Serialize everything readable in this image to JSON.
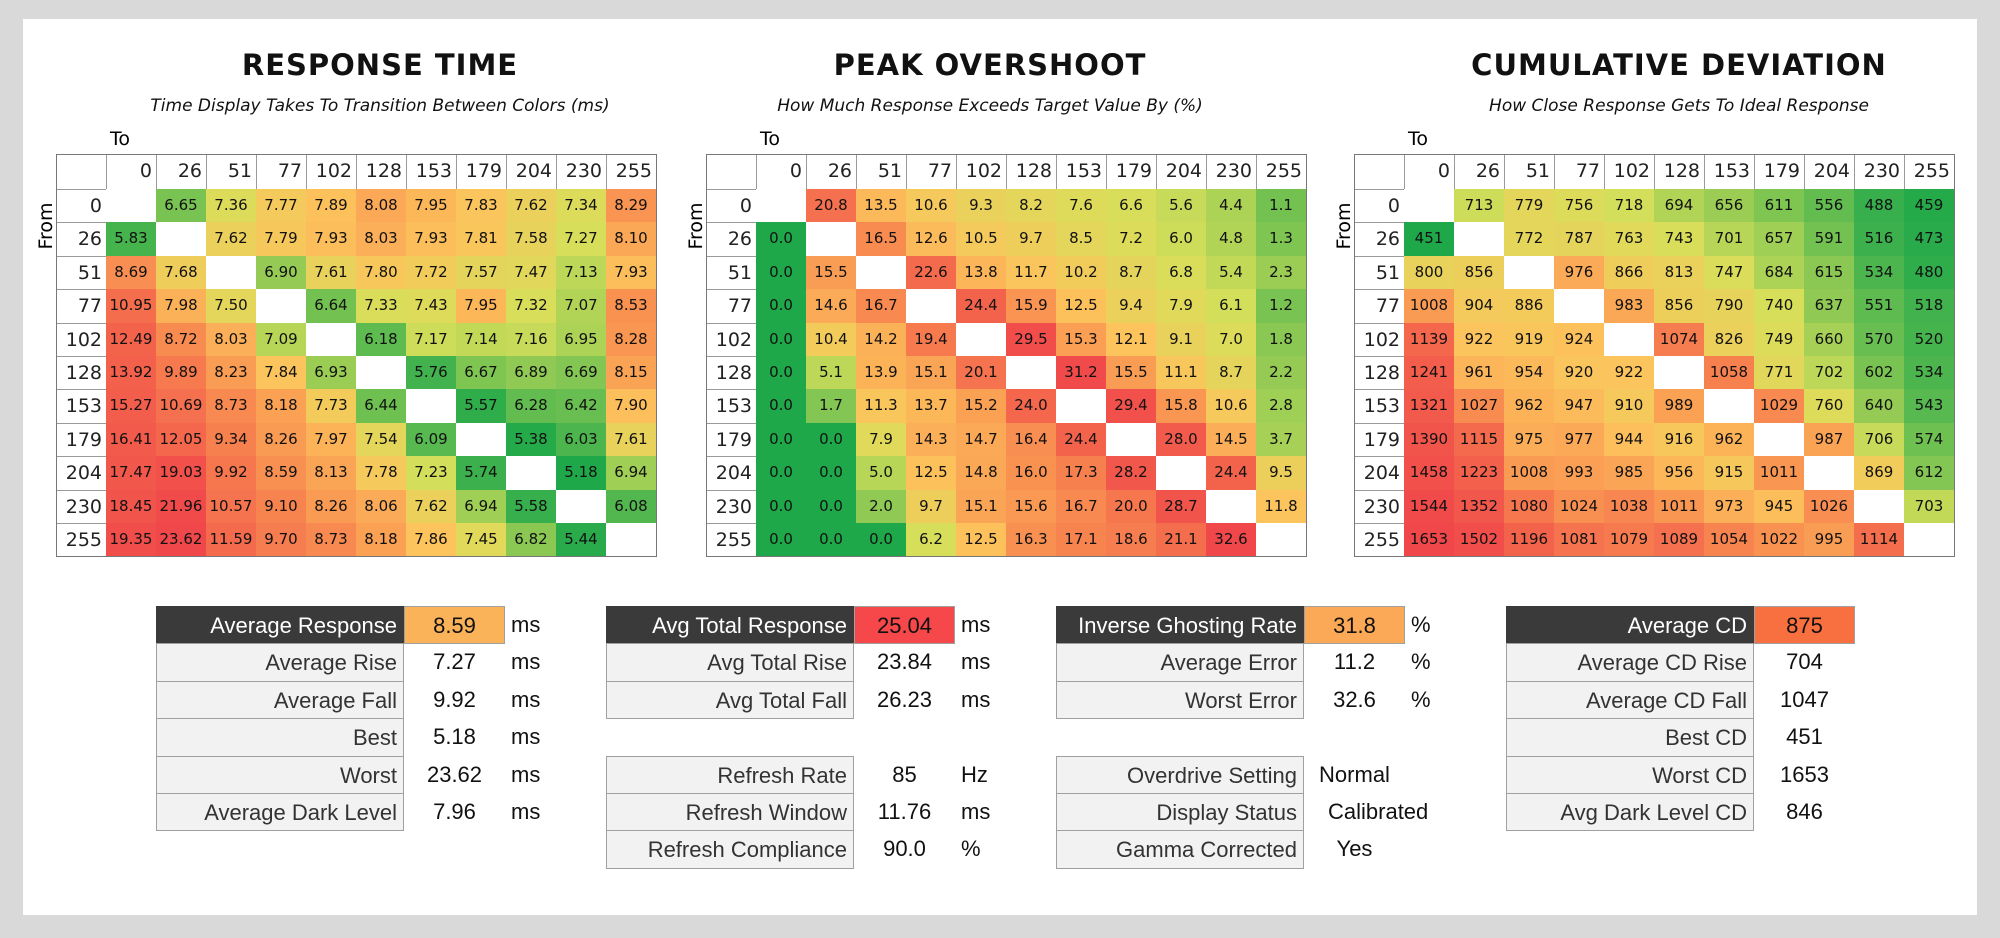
{
  "heatmaps": [
    {
      "title": "RESPONSE TIME",
      "subtitle": "Time Display Takes To Transition Between Colors (ms)",
      "to_label": "To",
      "from_label": "From",
      "columns": [
        "0",
        "26",
        "51",
        "77",
        "102",
        "128",
        "153",
        "179",
        "204",
        "230",
        "255"
      ],
      "rows": [
        {
          "label": "0",
          "cells": [
            null,
            "6.65",
            "7.36",
            "7.77",
            "7.89",
            "8.08",
            "7.95",
            "7.83",
            "7.62",
            "7.34",
            "8.29"
          ]
        },
        {
          "label": "26",
          "cells": [
            "5.83",
            null,
            "7.62",
            "7.79",
            "7.93",
            "8.03",
            "7.93",
            "7.81",
            "7.58",
            "7.27",
            "8.10"
          ]
        },
        {
          "label": "51",
          "cells": [
            "8.69",
            "7.68",
            null,
            "6.90",
            "7.61",
            "7.80",
            "7.72",
            "7.57",
            "7.47",
            "7.13",
            "7.93"
          ]
        },
        {
          "label": "77",
          "cells": [
            "10.95",
            "7.98",
            "7.50",
            null,
            "6.64",
            "7.33",
            "7.43",
            "7.95",
            "7.32",
            "7.07",
            "8.53"
          ]
        },
        {
          "label": "102",
          "cells": [
            "12.49",
            "8.72",
            "8.03",
            "7.09",
            null,
            "6.18",
            "7.17",
            "7.14",
            "7.16",
            "6.95",
            "8.28"
          ]
        },
        {
          "label": "128",
          "cells": [
            "13.92",
            "9.89",
            "8.23",
            "7.84",
            "6.93",
            null,
            "5.76",
            "6.67",
            "6.89",
            "6.69",
            "8.15"
          ]
        },
        {
          "label": "153",
          "cells": [
            "15.27",
            "10.69",
            "8.73",
            "8.18",
            "7.73",
            "6.44",
            null,
            "5.57",
            "6.28",
            "6.42",
            "7.90"
          ]
        },
        {
          "label": "179",
          "cells": [
            "16.41",
            "12.05",
            "9.34",
            "8.26",
            "7.97",
            "7.54",
            "6.09",
            null,
            "5.38",
            "6.03",
            "7.61"
          ]
        },
        {
          "label": "204",
          "cells": [
            "17.47",
            "19.03",
            "9.92",
            "8.59",
            "8.13",
            "7.78",
            "7.23",
            "5.74",
            null,
            "5.18",
            "6.94"
          ]
        },
        {
          "label": "230",
          "cells": [
            "18.45",
            "21.96",
            "10.57",
            "9.10",
            "8.26",
            "8.06",
            "7.62",
            "6.94",
            "5.58",
            null,
            "6.08"
          ]
        },
        {
          "label": "255",
          "cells": [
            "19.35",
            "23.62",
            "11.59",
            "9.70",
            "8.73",
            "8.18",
            "7.86",
            "7.45",
            "6.82",
            "5.44",
            null
          ]
        }
      ]
    },
    {
      "title": "PEAK OVERSHOOT",
      "subtitle": "How Much Response Exceeds Target Value By (%)",
      "to_label": "To",
      "from_label": "From",
      "columns": [
        "0",
        "26",
        "51",
        "77",
        "102",
        "128",
        "153",
        "179",
        "204",
        "230",
        "255"
      ],
      "rows": [
        {
          "label": "0",
          "cells": [
            null,
            "20.8",
            "13.5",
            "10.6",
            "9.3",
            "8.2",
            "7.6",
            "6.6",
            "5.6",
            "4.4",
            "1.1"
          ]
        },
        {
          "label": "26",
          "cells": [
            "0.0",
            null,
            "16.5",
            "12.6",
            "10.5",
            "9.7",
            "8.5",
            "7.2",
            "6.0",
            "4.8",
            "1.3"
          ]
        },
        {
          "label": "51",
          "cells": [
            "0.0",
            "15.5",
            null,
            "22.6",
            "13.8",
            "11.7",
            "10.2",
            "8.7",
            "6.8",
            "5.4",
            "2.3"
          ]
        },
        {
          "label": "77",
          "cells": [
            "0.0",
            "14.6",
            "16.7",
            null,
            "24.4",
            "15.9",
            "12.5",
            "9.4",
            "7.9",
            "6.1",
            "1.2"
          ]
        },
        {
          "label": "102",
          "cells": [
            "0.0",
            "10.4",
            "14.2",
            "19.4",
            null,
            "29.5",
            "15.3",
            "12.1",
            "9.1",
            "7.0",
            "1.8"
          ]
        },
        {
          "label": "128",
          "cells": [
            "0.0",
            "5.1",
            "13.9",
            "15.1",
            "20.1",
            null,
            "31.2",
            "15.5",
            "11.1",
            "8.7",
            "2.2"
          ]
        },
        {
          "label": "153",
          "cells": [
            "0.0",
            "1.7",
            "11.3",
            "13.7",
            "15.2",
            "24.0",
            null,
            "29.4",
            "15.8",
            "10.6",
            "2.8"
          ]
        },
        {
          "label": "179",
          "cells": [
            "0.0",
            "0.0",
            "7.9",
            "14.3",
            "14.7",
            "16.4",
            "24.4",
            null,
            "28.0",
            "14.5",
            "3.7"
          ]
        },
        {
          "label": "204",
          "cells": [
            "0.0",
            "0.0",
            "5.0",
            "12.5",
            "14.8",
            "16.0",
            "17.3",
            "28.2",
            null,
            "24.4",
            "9.5"
          ]
        },
        {
          "label": "230",
          "cells": [
            "0.0",
            "0.0",
            "2.0",
            "9.7",
            "15.1",
            "15.6",
            "16.7",
            "20.0",
            "28.7",
            null,
            "11.8"
          ]
        },
        {
          "label": "255",
          "cells": [
            "0.0",
            "0.0",
            "0.0",
            "6.2",
            "12.5",
            "16.3",
            "17.1",
            "18.6",
            "21.1",
            "32.6",
            null
          ]
        }
      ]
    },
    {
      "title": "CUMULATIVE DEVIATION",
      "subtitle": "How Close Response Gets To Ideal Response",
      "to_label": "To",
      "from_label": "From",
      "columns": [
        "0",
        "26",
        "51",
        "77",
        "102",
        "128",
        "153",
        "179",
        "204",
        "230",
        "255"
      ],
      "rows": [
        {
          "label": "0",
          "cells": [
            null,
            "713",
            "779",
            "756",
            "718",
            "694",
            "656",
            "611",
            "556",
            "488",
            "459"
          ]
        },
        {
          "label": "26",
          "cells": [
            "451",
            null,
            "772",
            "787",
            "763",
            "743",
            "701",
            "657",
            "591",
            "516",
            "473"
          ]
        },
        {
          "label": "51",
          "cells": [
            "800",
            "856",
            null,
            "976",
            "866",
            "813",
            "747",
            "684",
            "615",
            "534",
            "480"
          ]
        },
        {
          "label": "77",
          "cells": [
            "1008",
            "904",
            "886",
            null,
            "983",
            "856",
            "790",
            "740",
            "637",
            "551",
            "518"
          ]
        },
        {
          "label": "102",
          "cells": [
            "1139",
            "922",
            "919",
            "924",
            null,
            "1074",
            "826",
            "749",
            "660",
            "570",
            "520"
          ]
        },
        {
          "label": "128",
          "cells": [
            "1241",
            "961",
            "954",
            "920",
            "922",
            null,
            "1058",
            "771",
            "702",
            "602",
            "534"
          ]
        },
        {
          "label": "153",
          "cells": [
            "1321",
            "1027",
            "962",
            "947",
            "910",
            "989",
            null,
            "1029",
            "760",
            "640",
            "543"
          ]
        },
        {
          "label": "179",
          "cells": [
            "1390",
            "1115",
            "975",
            "977",
            "944",
            "916",
            "962",
            null,
            "987",
            "706",
            "574"
          ]
        },
        {
          "label": "204",
          "cells": [
            "1458",
            "1223",
            "1008",
            "993",
            "985",
            "956",
            "915",
            "1011",
            null,
            "869",
            "612"
          ]
        },
        {
          "label": "230",
          "cells": [
            "1544",
            "1352",
            "1080",
            "1024",
            "1038",
            "1011",
            "973",
            "945",
            "1026",
            null,
            "703"
          ]
        },
        {
          "label": "255",
          "cells": [
            "1653",
            "1502",
            "1196",
            "1081",
            "1079",
            "1089",
            "1054",
            "1022",
            "995",
            "1114",
            null
          ]
        }
      ]
    }
  ],
  "stats": [
    {
      "highlight_color": "#fbb35a",
      "blocks": [
        [
          {
            "label": "Average Response",
            "value": "8.59",
            "unit": "ms"
          },
          {
            "label": "Average Rise",
            "value": "7.27",
            "unit": "ms"
          },
          {
            "label": "Average Fall",
            "value": "9.92",
            "unit": "ms"
          },
          {
            "label": "Best",
            "value": "5.18",
            "unit": "ms"
          },
          {
            "label": "Worst",
            "value": "23.62",
            "unit": "ms"
          },
          {
            "label": "Average Dark Level",
            "value": "7.96",
            "unit": "ms"
          }
        ]
      ]
    },
    {
      "highlight_color": "#f6474b",
      "blocks": [
        [
          {
            "label": "Avg Total Response",
            "value": "25.04",
            "unit": "ms"
          },
          {
            "label": "Avg Total Rise",
            "value": "23.84",
            "unit": "ms"
          },
          {
            "label": "Avg Total Fall",
            "value": "26.23",
            "unit": "ms"
          }
        ],
        [
          {
            "label": "Refresh Rate",
            "value": "85",
            "unit": "Hz"
          },
          {
            "label": "Refresh Window",
            "value": "11.76",
            "unit": "ms"
          },
          {
            "label": "Refresh Compliance",
            "value": "90.0",
            "unit": "%"
          }
        ]
      ]
    },
    {
      "highlight_color": "#fba957",
      "blocks": [
        [
          {
            "label": "Inverse Ghosting Rate",
            "value": "31.8",
            "unit": "%"
          },
          {
            "label": "Average Error",
            "value": "11.2",
            "unit": "%"
          },
          {
            "label": "Worst Error",
            "value": "32.6",
            "unit": "%"
          }
        ],
        [
          {
            "label": "Overdrive Setting",
            "value": "Normal"
          },
          {
            "label": "Display Status",
            "value": "Calibrated"
          },
          {
            "label": "Gamma Corrected",
            "value": "Yes"
          }
        ]
      ]
    },
    {
      "highlight_color": "#f8703f",
      "blocks": [
        [
          {
            "label": "Average CD",
            "value": "875"
          },
          {
            "label": "Average CD Rise",
            "value": "704"
          },
          {
            "label": "Average CD Fall",
            "value": "1047"
          },
          {
            "label": "Best CD",
            "value": "451"
          },
          {
            "label": "Worst CD",
            "value": "1653"
          },
          {
            "label": "Avg Dark Level CD",
            "value": "846"
          }
        ]
      ]
    }
  ]
}
